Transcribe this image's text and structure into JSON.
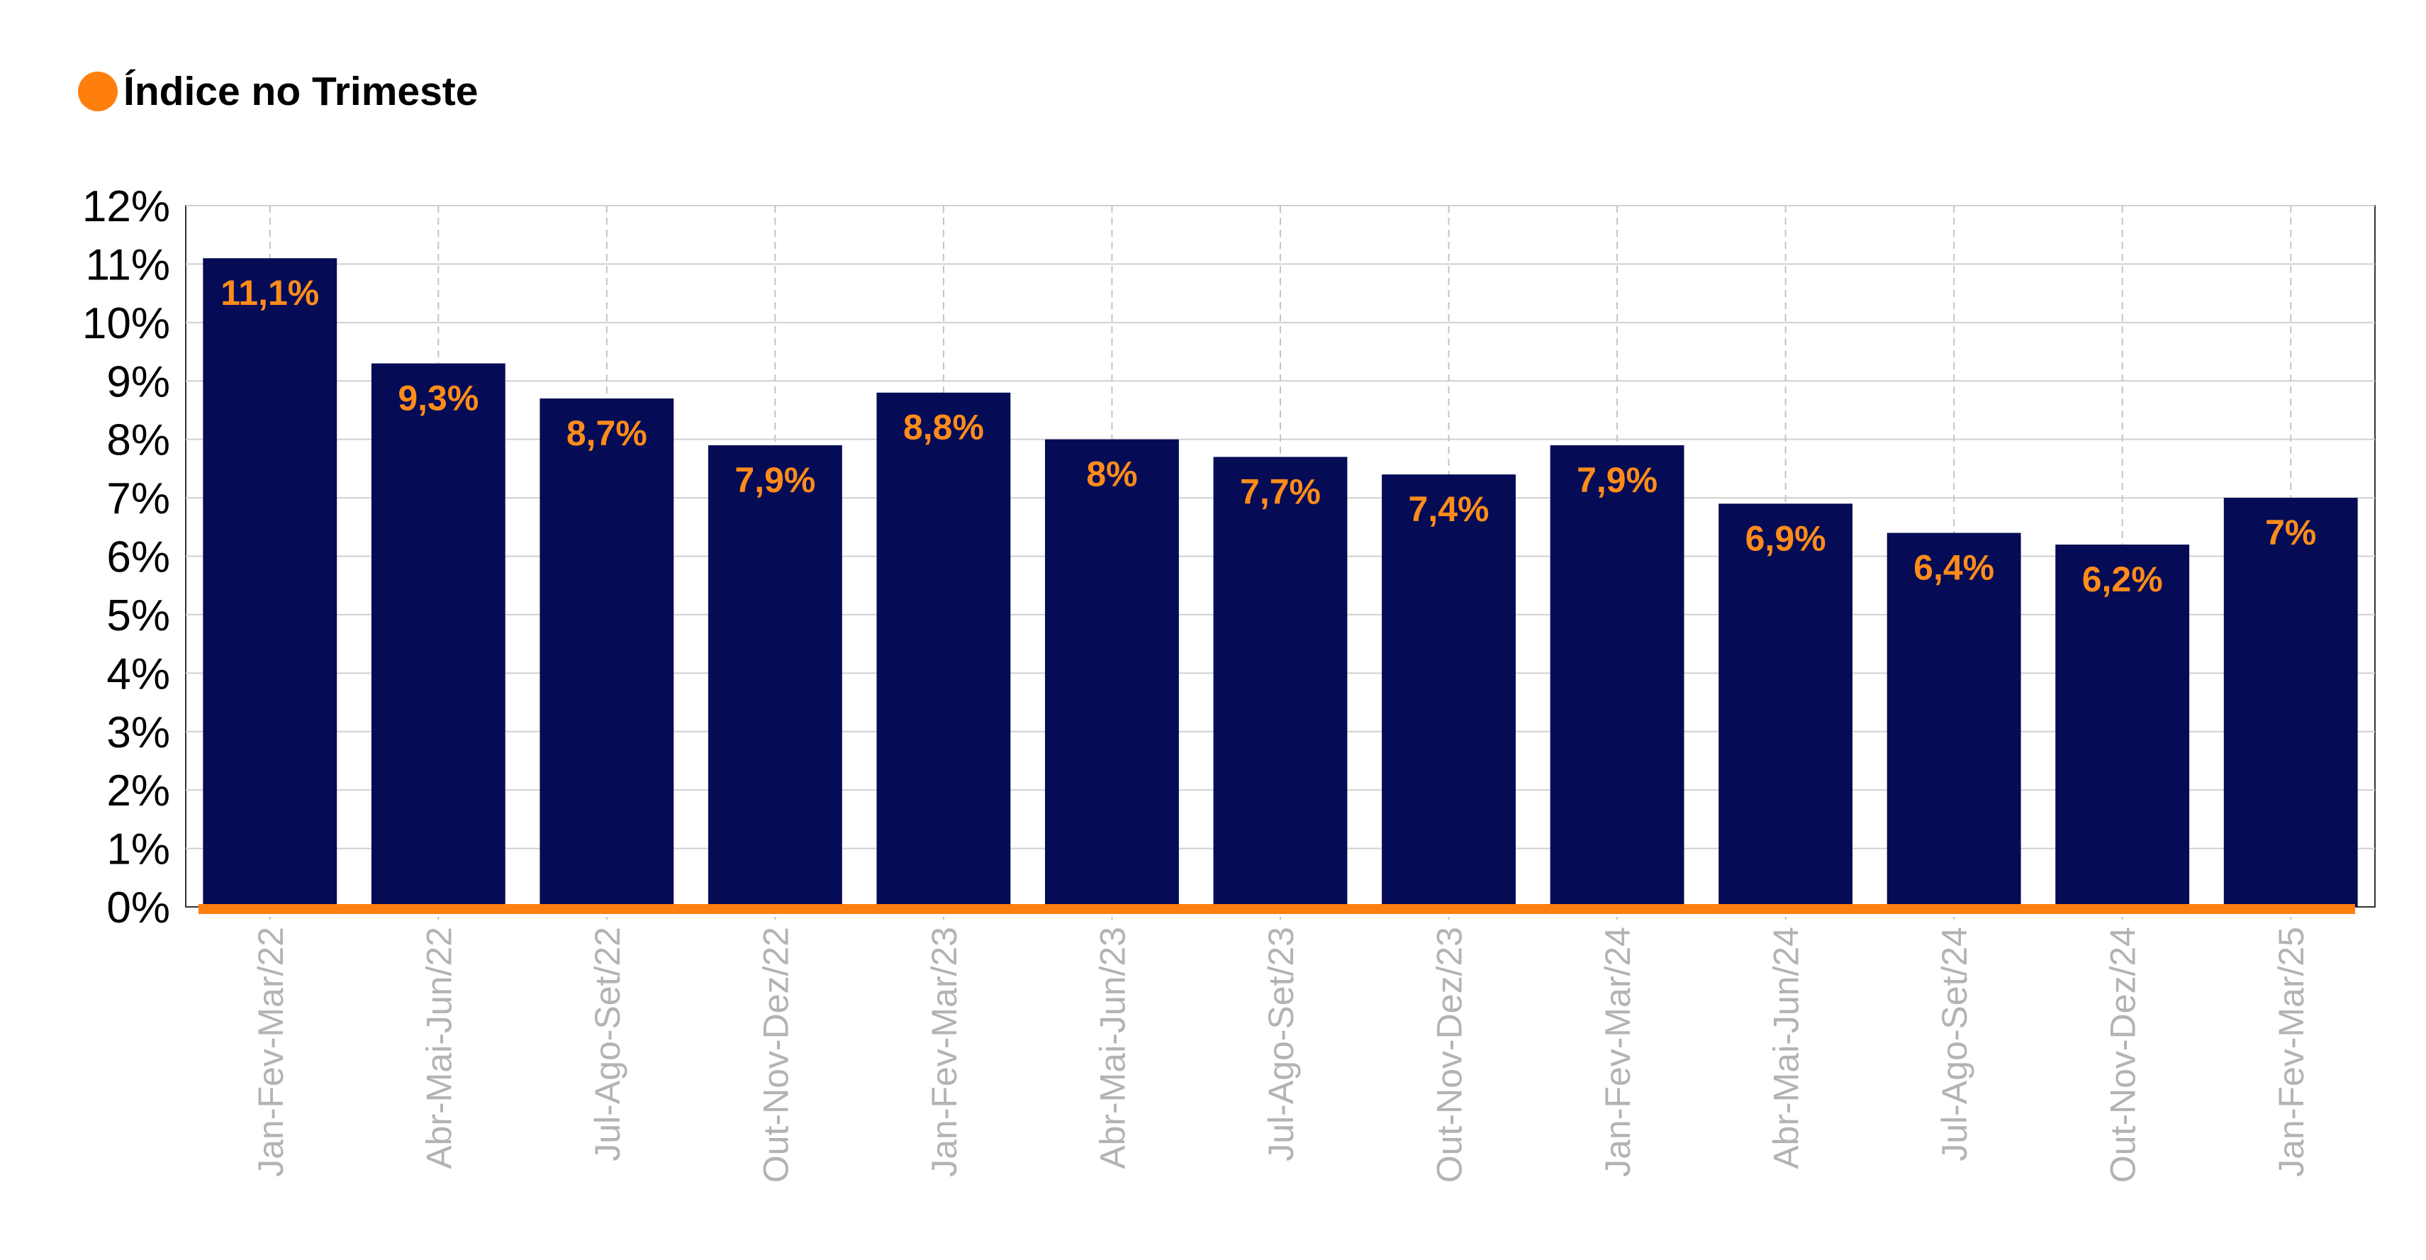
{
  "legend": {
    "label": "Índice no Trimeste",
    "marker_color": "#ff7f0e"
  },
  "chart_data": {
    "type": "bar",
    "categories": [
      "Jan-Fev-Mar/22",
      "Abr-Mai-Jun/22",
      "Jul-Ago-Set/22",
      "Out-Nov-Dez/22",
      "Jan-Fev-Mar/23",
      "Abr-Mai-Jun/23",
      "Jul-Ago-Set/23",
      "Out-Nov-Dez/23",
      "Jan-Fev-Mar/24",
      "Abr-Mai-Jun/24",
      "Jul-Ago-Set/24",
      "Out-Nov-Dez/24",
      "Jan-Fev-Mar/25"
    ],
    "series": [
      {
        "name": "Índice no Trimeste",
        "values": [
          11.1,
          9.3,
          8.7,
          7.9,
          8.8,
          8.0,
          7.7,
          7.4,
          7.9,
          6.9,
          6.4,
          6.2,
          7.0
        ],
        "labels": [
          "11,1%",
          "9,3%",
          "8,7%",
          "7,9%",
          "8,8%",
          "8%",
          "7,7%",
          "7,4%",
          "7,9%",
          "6,9%",
          "6,4%",
          "6,2%",
          "7%"
        ]
      }
    ],
    "yticks": [
      "0%",
      "1%",
      "2%",
      "3%",
      "4%",
      "5%",
      "6%",
      "7%",
      "8%",
      "9%",
      "10%",
      "11%",
      "12%"
    ],
    "ylim": [
      0,
      12
    ],
    "grid": true,
    "legend_position": "top-left",
    "colors": {
      "bar": "#060b56",
      "label": "#ff8c1a",
      "baseline": "#ff7f0e",
      "xtick": "#b3b3b3",
      "grid": "#d0d0d0"
    }
  }
}
